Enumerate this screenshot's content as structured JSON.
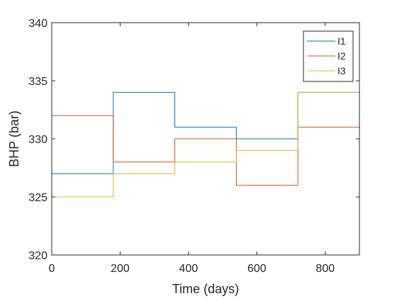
{
  "chart_data": {
    "type": "line",
    "step": true,
    "xlabel": "Time (days)",
    "ylabel": "BHP (bar)",
    "xlim": [
      0,
      900
    ],
    "ylim": [
      320,
      340
    ],
    "xticks": [
      0,
      200,
      400,
      600,
      800
    ],
    "yticks": [
      320,
      325,
      330,
      335,
      340
    ],
    "grid": false,
    "legend_position": "top-right",
    "step_times": [
      0,
      180,
      360,
      540,
      720,
      900
    ],
    "series": [
      {
        "name": "I1",
        "color": "#0072BD",
        "values": [
          327,
          334,
          331,
          330,
          334
        ]
      },
      {
        "name": "I2",
        "color": "#D95319",
        "values": [
          332,
          328,
          330,
          326,
          331
        ]
      },
      {
        "name": "I3",
        "color": "#EDB120",
        "values": [
          325,
          327,
          328,
          329,
          334
        ]
      }
    ]
  }
}
